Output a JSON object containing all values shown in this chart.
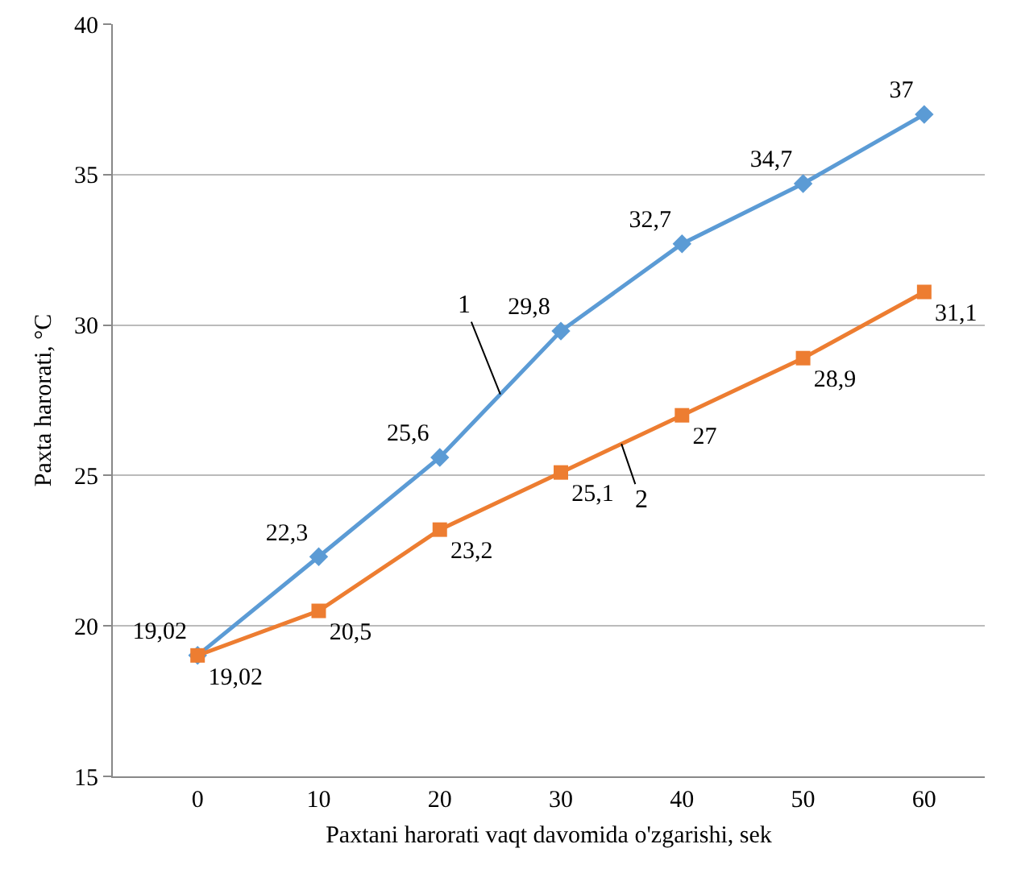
{
  "chart_data": {
    "type": "line",
    "xlabel": "Paxtani harorati vaqt davomida o'zgarishi, sek",
    "ylabel": "Paxta harorati, °C",
    "categories": [
      "0",
      "10",
      "20",
      "30",
      "40",
      "50",
      "60"
    ],
    "series": [
      {
        "name": "1",
        "color": "#5b9bd5",
        "marker": "diamond",
        "values": [
          19.02,
          22.3,
          25.6,
          29.8,
          32.7,
          34.7,
          37
        ],
        "value_labels": [
          "19,02",
          "22,3",
          "25,6",
          "29,8",
          "32,7",
          "34,7",
          "37"
        ]
      },
      {
        "name": "2",
        "color": "#ed7d31",
        "marker": "square",
        "values": [
          19.02,
          20.5,
          23.2,
          25.1,
          27,
          28.9,
          31.1
        ],
        "value_labels": [
          "19,02",
          "20,5",
          "23,2",
          "25,1",
          "27",
          "28,9",
          "31,1"
        ]
      }
    ],
    "ylim": [
      15,
      40
    ],
    "yticks": [
      15,
      20,
      25,
      30,
      35,
      40
    ],
    "grid": "y",
    "legend": false
  }
}
